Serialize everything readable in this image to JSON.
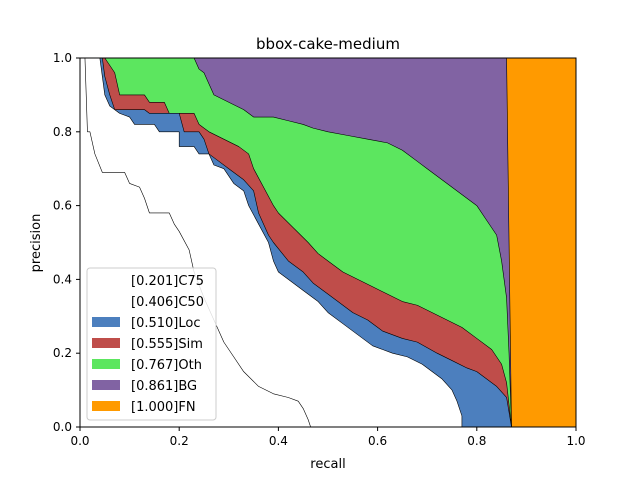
{
  "chart_data": {
    "type": "area",
    "title": "bbox-cake-medium",
    "xlabel": "recall",
    "ylabel": "precision",
    "xlim": [
      0,
      1
    ],
    "ylim": [
      0,
      1
    ],
    "xticks": [
      "0.0",
      "0.2",
      "0.4",
      "0.6",
      "0.8",
      "1.0"
    ],
    "yticks": [
      "0.0",
      "0.2",
      "0.4",
      "0.6",
      "0.8",
      "1.0"
    ],
    "grid": false,
    "legend_position": "lower-left",
    "series": [
      {
        "name": "[0.201]C75",
        "color": "#ffffff",
        "points": [
          [
            0,
            1
          ],
          [
            0.01,
            1
          ],
          [
            0.015,
            0.8
          ],
          [
            0.02,
            0.8
          ],
          [
            0.03,
            0.74
          ],
          [
            0.045,
            0.69
          ],
          [
            0.07,
            0.69
          ],
          [
            0.09,
            0.69
          ],
          [
            0.1,
            0.66
          ],
          [
            0.12,
            0.65
          ],
          [
            0.13,
            0.62
          ],
          [
            0.14,
            0.58
          ],
          [
            0.15,
            0.58
          ],
          [
            0.18,
            0.58
          ],
          [
            0.19,
            0.55
          ],
          [
            0.2,
            0.53
          ],
          [
            0.22,
            0.48
          ],
          [
            0.23,
            0.42
          ],
          [
            0.25,
            0.35
          ],
          [
            0.27,
            0.29
          ],
          [
            0.29,
            0.23
          ],
          [
            0.31,
            0.19
          ],
          [
            0.33,
            0.15
          ],
          [
            0.36,
            0.11
          ],
          [
            0.39,
            0.09
          ],
          [
            0.42,
            0.08
          ],
          [
            0.44,
            0.07
          ],
          [
            0.45,
            0.05
          ],
          [
            0.46,
            0.02
          ],
          [
            0.465,
            0
          ]
        ]
      },
      {
        "name": "[0.406]C50",
        "color": "#ffffff",
        "points": [
          [
            0,
            1
          ],
          [
            0.04,
            1
          ],
          [
            0.045,
            0.95
          ],
          [
            0.05,
            0.9
          ],
          [
            0.06,
            0.87
          ],
          [
            0.08,
            0.85
          ],
          [
            0.1,
            0.84
          ],
          [
            0.11,
            0.82
          ],
          [
            0.13,
            0.82
          ],
          [
            0.15,
            0.82
          ],
          [
            0.16,
            0.8
          ],
          [
            0.2,
            0.8
          ],
          [
            0.2,
            0.76
          ],
          [
            0.23,
            0.76
          ],
          [
            0.24,
            0.74
          ],
          [
            0.26,
            0.74
          ],
          [
            0.27,
            0.71
          ],
          [
            0.29,
            0.7
          ],
          [
            0.3,
            0.68
          ],
          [
            0.31,
            0.66
          ],
          [
            0.33,
            0.64
          ],
          [
            0.34,
            0.6
          ],
          [
            0.36,
            0.55
          ],
          [
            0.38,
            0.5
          ],
          [
            0.39,
            0.45
          ],
          [
            0.4,
            0.42
          ],
          [
            0.42,
            0.4
          ],
          [
            0.45,
            0.37
          ],
          [
            0.48,
            0.34
          ],
          [
            0.5,
            0.31
          ],
          [
            0.53,
            0.28
          ],
          [
            0.55,
            0.26
          ],
          [
            0.57,
            0.24
          ],
          [
            0.59,
            0.22
          ],
          [
            0.61,
            0.21
          ],
          [
            0.63,
            0.2
          ],
          [
            0.66,
            0.19
          ],
          [
            0.69,
            0.17
          ],
          [
            0.71,
            0.15
          ],
          [
            0.73,
            0.13
          ],
          [
            0.75,
            0.1
          ],
          [
            0.76,
            0.07
          ],
          [
            0.77,
            0.03
          ],
          [
            0.77,
            0
          ]
        ]
      },
      {
        "name": "[0.510]Loc",
        "color": "#4c7fbe",
        "points": [
          [
            0,
            1
          ],
          [
            0.045,
            1
          ],
          [
            0.05,
            0.95
          ],
          [
            0.06,
            0.9
          ],
          [
            0.07,
            0.86
          ],
          [
            0.08,
            0.86
          ],
          [
            0.13,
            0.86
          ],
          [
            0.14,
            0.85
          ],
          [
            0.2,
            0.85
          ],
          [
            0.21,
            0.8
          ],
          [
            0.24,
            0.8
          ],
          [
            0.25,
            0.78
          ],
          [
            0.26,
            0.74
          ],
          [
            0.28,
            0.72
          ],
          [
            0.3,
            0.7
          ],
          [
            0.33,
            0.67
          ],
          [
            0.35,
            0.64
          ],
          [
            0.36,
            0.58
          ],
          [
            0.38,
            0.52
          ],
          [
            0.39,
            0.5
          ],
          [
            0.42,
            0.45
          ],
          [
            0.45,
            0.42
          ],
          [
            0.47,
            0.39
          ],
          [
            0.5,
            0.36
          ],
          [
            0.52,
            0.34
          ],
          [
            0.55,
            0.31
          ],
          [
            0.58,
            0.29
          ],
          [
            0.61,
            0.26
          ],
          [
            0.65,
            0.24
          ],
          [
            0.68,
            0.23
          ],
          [
            0.72,
            0.2
          ],
          [
            0.75,
            0.18
          ],
          [
            0.78,
            0.16
          ],
          [
            0.8,
            0.15
          ],
          [
            0.82,
            0.13
          ],
          [
            0.84,
            0.11
          ],
          [
            0.86,
            0.08
          ],
          [
            0.865,
            0.04
          ],
          [
            0.87,
            0
          ]
        ]
      },
      {
        "name": "[0.555]Sim",
        "color": "#bf4d4a",
        "points": [
          [
            0,
            1
          ],
          [
            0.05,
            1
          ],
          [
            0.06,
            0.98
          ],
          [
            0.07,
            0.96
          ],
          [
            0.08,
            0.9
          ],
          [
            0.1,
            0.9
          ],
          [
            0.13,
            0.9
          ],
          [
            0.14,
            0.88
          ],
          [
            0.17,
            0.88
          ],
          [
            0.18,
            0.85
          ],
          [
            0.23,
            0.85
          ],
          [
            0.24,
            0.82
          ],
          [
            0.26,
            0.8
          ],
          [
            0.29,
            0.78
          ],
          [
            0.32,
            0.76
          ],
          [
            0.34,
            0.74
          ],
          [
            0.35,
            0.7
          ],
          [
            0.37,
            0.65
          ],
          [
            0.39,
            0.6
          ],
          [
            0.4,
            0.58
          ],
          [
            0.43,
            0.54
          ],
          [
            0.46,
            0.5
          ],
          [
            0.48,
            0.47
          ],
          [
            0.5,
            0.45
          ],
          [
            0.53,
            0.42
          ],
          [
            0.56,
            0.4
          ],
          [
            0.59,
            0.38
          ],
          [
            0.62,
            0.36
          ],
          [
            0.65,
            0.34
          ],
          [
            0.68,
            0.33
          ],
          [
            0.71,
            0.31
          ],
          [
            0.74,
            0.29
          ],
          [
            0.77,
            0.27
          ],
          [
            0.8,
            0.24
          ],
          [
            0.83,
            0.21
          ],
          [
            0.85,
            0.17
          ],
          [
            0.86,
            0.12
          ],
          [
            0.865,
            0.06
          ],
          [
            0.87,
            0
          ]
        ]
      },
      {
        "name": "[0.767]Oth",
        "color": "#5ce65f",
        "points": [
          [
            0,
            1
          ],
          [
            0.08,
            1
          ],
          [
            0.09,
            1
          ],
          [
            0.23,
            1
          ],
          [
            0.24,
            0.97
          ],
          [
            0.25,
            0.96
          ],
          [
            0.26,
            0.93
          ],
          [
            0.27,
            0.9
          ],
          [
            0.3,
            0.88
          ],
          [
            0.33,
            0.86
          ],
          [
            0.35,
            0.84
          ],
          [
            0.39,
            0.84
          ],
          [
            0.42,
            0.83
          ],
          [
            0.45,
            0.82
          ],
          [
            0.47,
            0.81
          ],
          [
            0.5,
            0.8
          ],
          [
            0.54,
            0.79
          ],
          [
            0.58,
            0.78
          ],
          [
            0.62,
            0.77
          ],
          [
            0.65,
            0.75
          ],
          [
            0.68,
            0.72
          ],
          [
            0.7,
            0.7
          ],
          [
            0.72,
            0.68
          ],
          [
            0.74,
            0.66
          ],
          [
            0.76,
            0.64
          ],
          [
            0.78,
            0.62
          ],
          [
            0.8,
            0.6
          ],
          [
            0.82,
            0.56
          ],
          [
            0.84,
            0.52
          ],
          [
            0.85,
            0.45
          ],
          [
            0.86,
            0.35
          ],
          [
            0.865,
            0.2
          ],
          [
            0.87,
            0
          ]
        ]
      },
      {
        "name": "[0.861]BG",
        "color": "#8163a3",
        "points": [
          [
            0,
            1
          ],
          [
            0.86,
            1
          ],
          [
            0.87,
            0
          ]
        ]
      },
      {
        "name": "[1.000]FN",
        "color": "#ff9a00",
        "points": [
          [
            0,
            1
          ],
          [
            1,
            1
          ],
          [
            1,
            0
          ]
        ]
      }
    ]
  }
}
